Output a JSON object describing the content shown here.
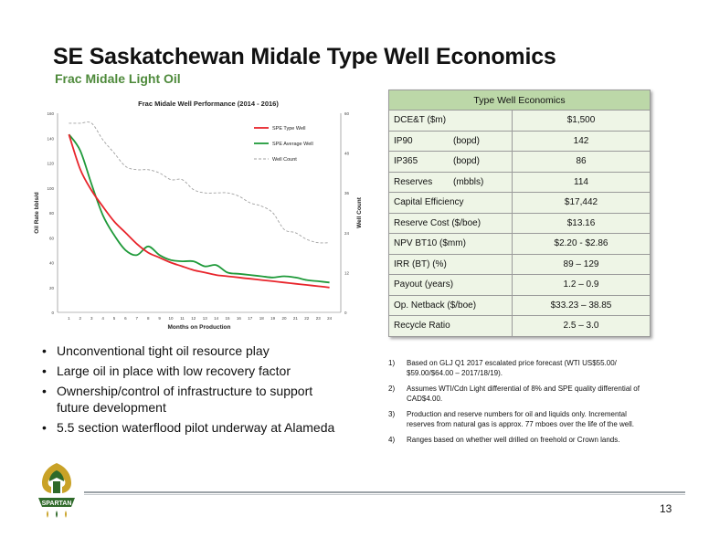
{
  "header": {
    "title": "SE Saskatchewan Midale Type Well Economics",
    "subtitle": "Frac Midale Light Oil"
  },
  "chart_data": {
    "type": "line",
    "title": "Frac Midale Well Performance (2014 - 2016)",
    "xlabel": "Months on Production",
    "ylabel": "Oil Rate bbls/d",
    "y2label": "Well Count",
    "x": [
      1,
      2,
      3,
      4,
      5,
      6,
      7,
      8,
      9,
      10,
      11,
      12,
      13,
      14,
      15,
      16,
      17,
      18,
      19,
      20,
      21,
      22,
      23,
      24
    ],
    "ylim": [
      0,
      160
    ],
    "y2lim": [
      0,
      60
    ],
    "yticks": [
      "0",
      "20",
      "40",
      "60",
      "80",
      "100",
      "120",
      "140",
      "160"
    ],
    "y2ticks": [
      "0",
      "12",
      "24",
      "36",
      "48",
      "60"
    ],
    "legend_position": "top-right",
    "grid": false,
    "series": [
      {
        "name": "SPE Type Well",
        "color": "#e8242b",
        "axis": "left",
        "style": "solid",
        "values": [
          143,
          115,
          98,
          85,
          73,
          64,
          55,
          48,
          44,
          40,
          37,
          34,
          32,
          30,
          29,
          28,
          27,
          26,
          25,
          24,
          23,
          22,
          21,
          20
        ]
      },
      {
        "name": "SPE Average Well",
        "color": "#1f9a3a",
        "axis": "left",
        "style": "solid",
        "values": [
          143,
          130,
          103,
          78,
          62,
          50,
          46,
          53,
          46,
          42,
          41,
          41,
          37,
          38,
          32,
          31,
          30,
          29,
          28,
          29,
          28,
          26,
          25,
          24
        ]
      },
      {
        "name": "Well Count",
        "color": "#a0a0a0",
        "axis": "right",
        "style": "dashed",
        "values": [
          57,
          57,
          57,
          52,
          48,
          44,
          43,
          43,
          42,
          40,
          40,
          37,
          36,
          36,
          36,
          35,
          33,
          32,
          30,
          25,
          24,
          22,
          21,
          21
        ]
      }
    ]
  },
  "table": {
    "header": "Type Well Economics",
    "rows": [
      {
        "label": "DCE&T ($m)",
        "unit": "",
        "value": "$1,500"
      },
      {
        "label": "IP90",
        "unit": "(bopd)",
        "value": "142"
      },
      {
        "label": "IP365",
        "unit": "(bopd)",
        "value": "86"
      },
      {
        "label": "Reserves",
        "unit": "(mbbls)",
        "value": "114"
      },
      {
        "label": "Capital Efficiency",
        "unit": "",
        "value": "$17,442"
      },
      {
        "label": "Reserve Cost ($/boe)",
        "unit": "",
        "value": "$13.16"
      },
      {
        "label": "NPV BT10 ($mm)",
        "unit": "",
        "value": "$2.20 - $2.86"
      },
      {
        "label": "IRR (BT) (%)",
        "unit": "",
        "value": "89 – 129"
      },
      {
        "label": "Payout (years)",
        "unit": "",
        "value": "1.2 – 0.9"
      },
      {
        "label": "Op. Netback ($/boe)",
        "unit": "",
        "value": "$33.23 – 38.85"
      },
      {
        "label": "Recycle Ratio",
        "unit": "",
        "value": "2.5 – 3.0"
      }
    ]
  },
  "bullets": [
    "Unconventional tight oil resource play",
    "Large oil in place with low recovery factor",
    "Ownership/control of infrastructure to support future development",
    "5.5 section waterflood pilot underway at Alameda"
  ],
  "notes": [
    {
      "num": "1)",
      "text": "Based on GLJ Q1 2017 escalated price forecast (WTI US$55.00/ $59.00/$64.00 – 2017/18/19)."
    },
    {
      "num": "2)",
      "text": "Assumes WTI/Cdn Light differential of 8% and SPE quality differential of CAD$4.00."
    },
    {
      "num": "3)",
      "text": "Production and reserve numbers for oil and liquids only. Incremental reserves from natural gas is approx. 77 mboes over the life of the well."
    },
    {
      "num": "4)",
      "text": "Ranges based on whether well drilled on freehold or Crown lands."
    }
  ],
  "footer": {
    "logo_text": "SPARTAN",
    "page_number": "13"
  }
}
